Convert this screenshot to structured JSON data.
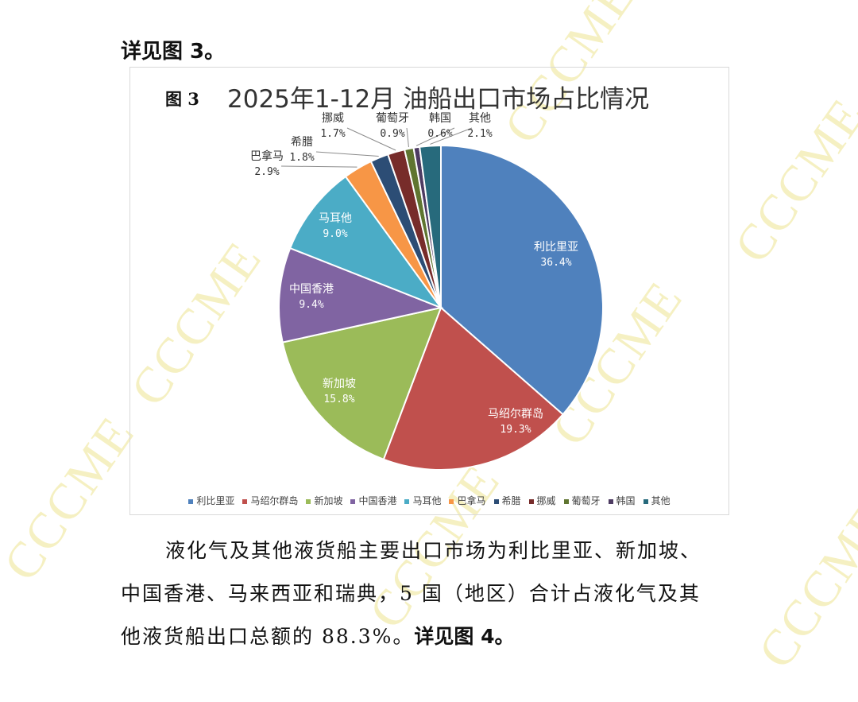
{
  "watermark": "CCCME",
  "intro_text": "详见图 3。",
  "chart_data": {
    "type": "pie",
    "figure_label": "图 3",
    "title": "2025年1-12月 油船出口市场占比情况",
    "slices": [
      {
        "name": "利比里亚",
        "value": 36.4,
        "label": "36.4%",
        "color": "#4f81bd"
      },
      {
        "name": "马绍尔群岛",
        "value": 19.3,
        "label": "19.3%",
        "color": "#c0504d"
      },
      {
        "name": "新加坡",
        "value": 15.8,
        "label": "15.8%",
        "color": "#9bbb59"
      },
      {
        "name": "中国香港",
        "value": 9.4,
        "label": "9.4%",
        "color": "#8064a2"
      },
      {
        "name": "马耳他",
        "value": 9.0,
        "label": "9.0%",
        "color": "#4bacc6"
      },
      {
        "name": "巴拿马",
        "value": 2.9,
        "label": "2.9%",
        "color": "#f79646"
      },
      {
        "name": "希腊",
        "value": 1.8,
        "label": "1.8%",
        "color": "#2c4d75"
      },
      {
        "name": "挪威",
        "value": 1.7,
        "label": "1.7%",
        "color": "#772c2a"
      },
      {
        "name": "葡萄牙",
        "value": 0.9,
        "label": "0.9%",
        "color": "#5f7530"
      },
      {
        "name": "韩国",
        "value": 0.6,
        "label": "0.6%",
        "color": "#4d3b62"
      },
      {
        "name": "其他",
        "value": 2.1,
        "label": "2.1%",
        "color": "#276a7c"
      }
    ],
    "legend": [
      "利比里亚",
      "马绍尔群岛",
      "新加坡",
      "中国香港",
      "马耳他",
      "巴拿马",
      "希腊",
      "挪威",
      "葡萄牙",
      "韩国",
      "其他"
    ]
  },
  "paragraph": {
    "line1": "液化气及其他液货船主要出口市场为利比里亚、新加坡、",
    "line2": "中国香港、马来西亚和瑞典，5 国（地区）合计占液化气及其",
    "line3_text": "他液货船出口总额的 88.3%。",
    "line3_ref": "详见图 4。"
  }
}
